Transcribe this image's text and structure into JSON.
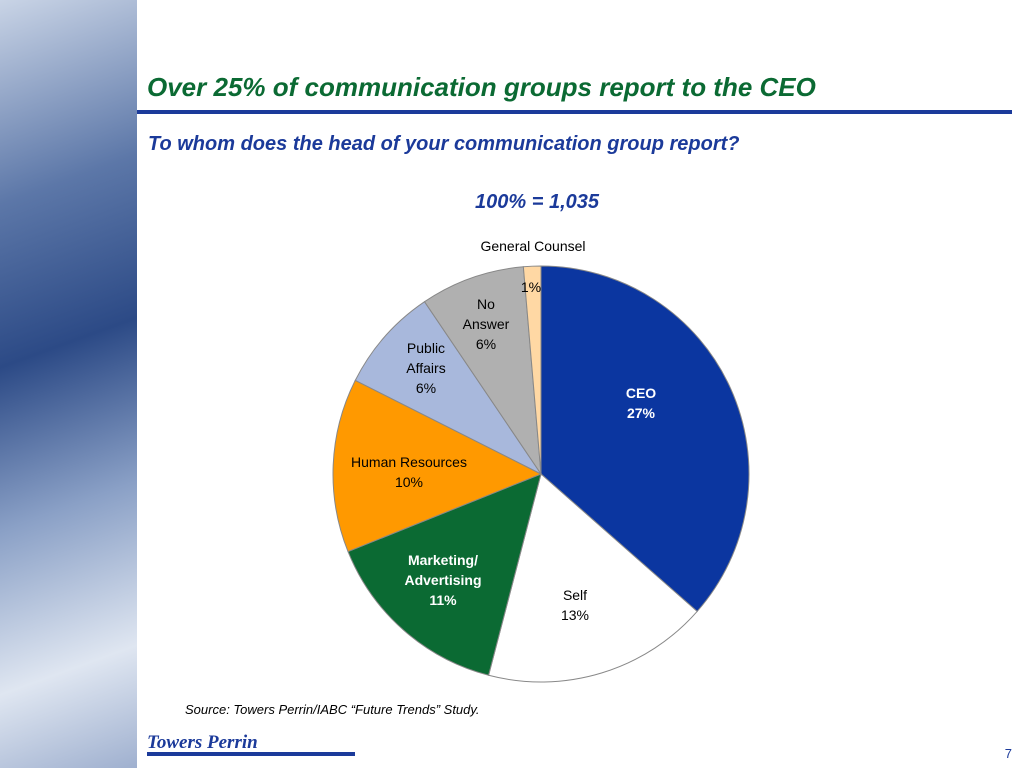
{
  "header": {
    "title": "Over 25% of communication groups report to the CEO"
  },
  "chart_data": {
    "type": "pie",
    "title": "To whom does the head of your communication group report?",
    "subtitle": "100% = 1,035",
    "categories": [
      "CEO",
      "Self",
      "Marketing/ Advertising",
      "Human Resources",
      "Public Affairs",
      "No Answer",
      "General Counsel"
    ],
    "values": [
      27,
      13,
      11,
      10,
      6,
      6,
      1
    ],
    "value_labels": [
      "27%",
      "13%",
      "11%",
      "10%",
      "6%",
      "6%",
      "1%"
    ],
    "colors": [
      "#0b36a0",
      "#ffffff",
      "#0b6a33",
      "#ff9900",
      "#a8b8dc",
      "#b0b0b0",
      "#ffd8a4"
    ]
  },
  "footer": {
    "source": "Source: Towers Perrin/IABC “Future Trends” Study.",
    "logo": "Towers Perrin",
    "page": "7"
  }
}
